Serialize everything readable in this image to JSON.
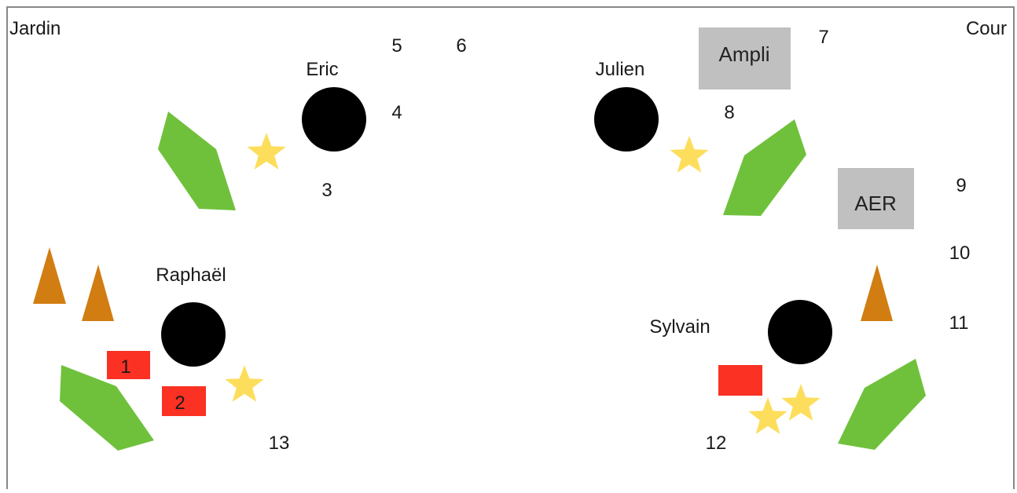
{
  "corners": {
    "left": "Jardin",
    "right": "Cour"
  },
  "musicians": {
    "eric": "Eric",
    "julien": "Julien",
    "raphael": "Raphaël",
    "sylvain": "Sylvain"
  },
  "boxes": {
    "ampli": "Ampli",
    "aer": "AER"
  },
  "red_labels": {
    "one": "1",
    "two": "2"
  },
  "positions": {
    "p3": "3",
    "p4": "4",
    "p5": "5",
    "p6": "6",
    "p7": "7",
    "p8": "8",
    "p9": "9",
    "p10": "10",
    "p11": "11",
    "p12": "12",
    "p13": "13"
  },
  "colors": {
    "border": "#888888",
    "musician": "#000000",
    "wedge": "#6fc13b",
    "star": "#fdde5c",
    "cone": "#d17d12",
    "red_box": "#fa3123",
    "gray_box": "#c0c0c0",
    "text": "#1a1a1a"
  }
}
